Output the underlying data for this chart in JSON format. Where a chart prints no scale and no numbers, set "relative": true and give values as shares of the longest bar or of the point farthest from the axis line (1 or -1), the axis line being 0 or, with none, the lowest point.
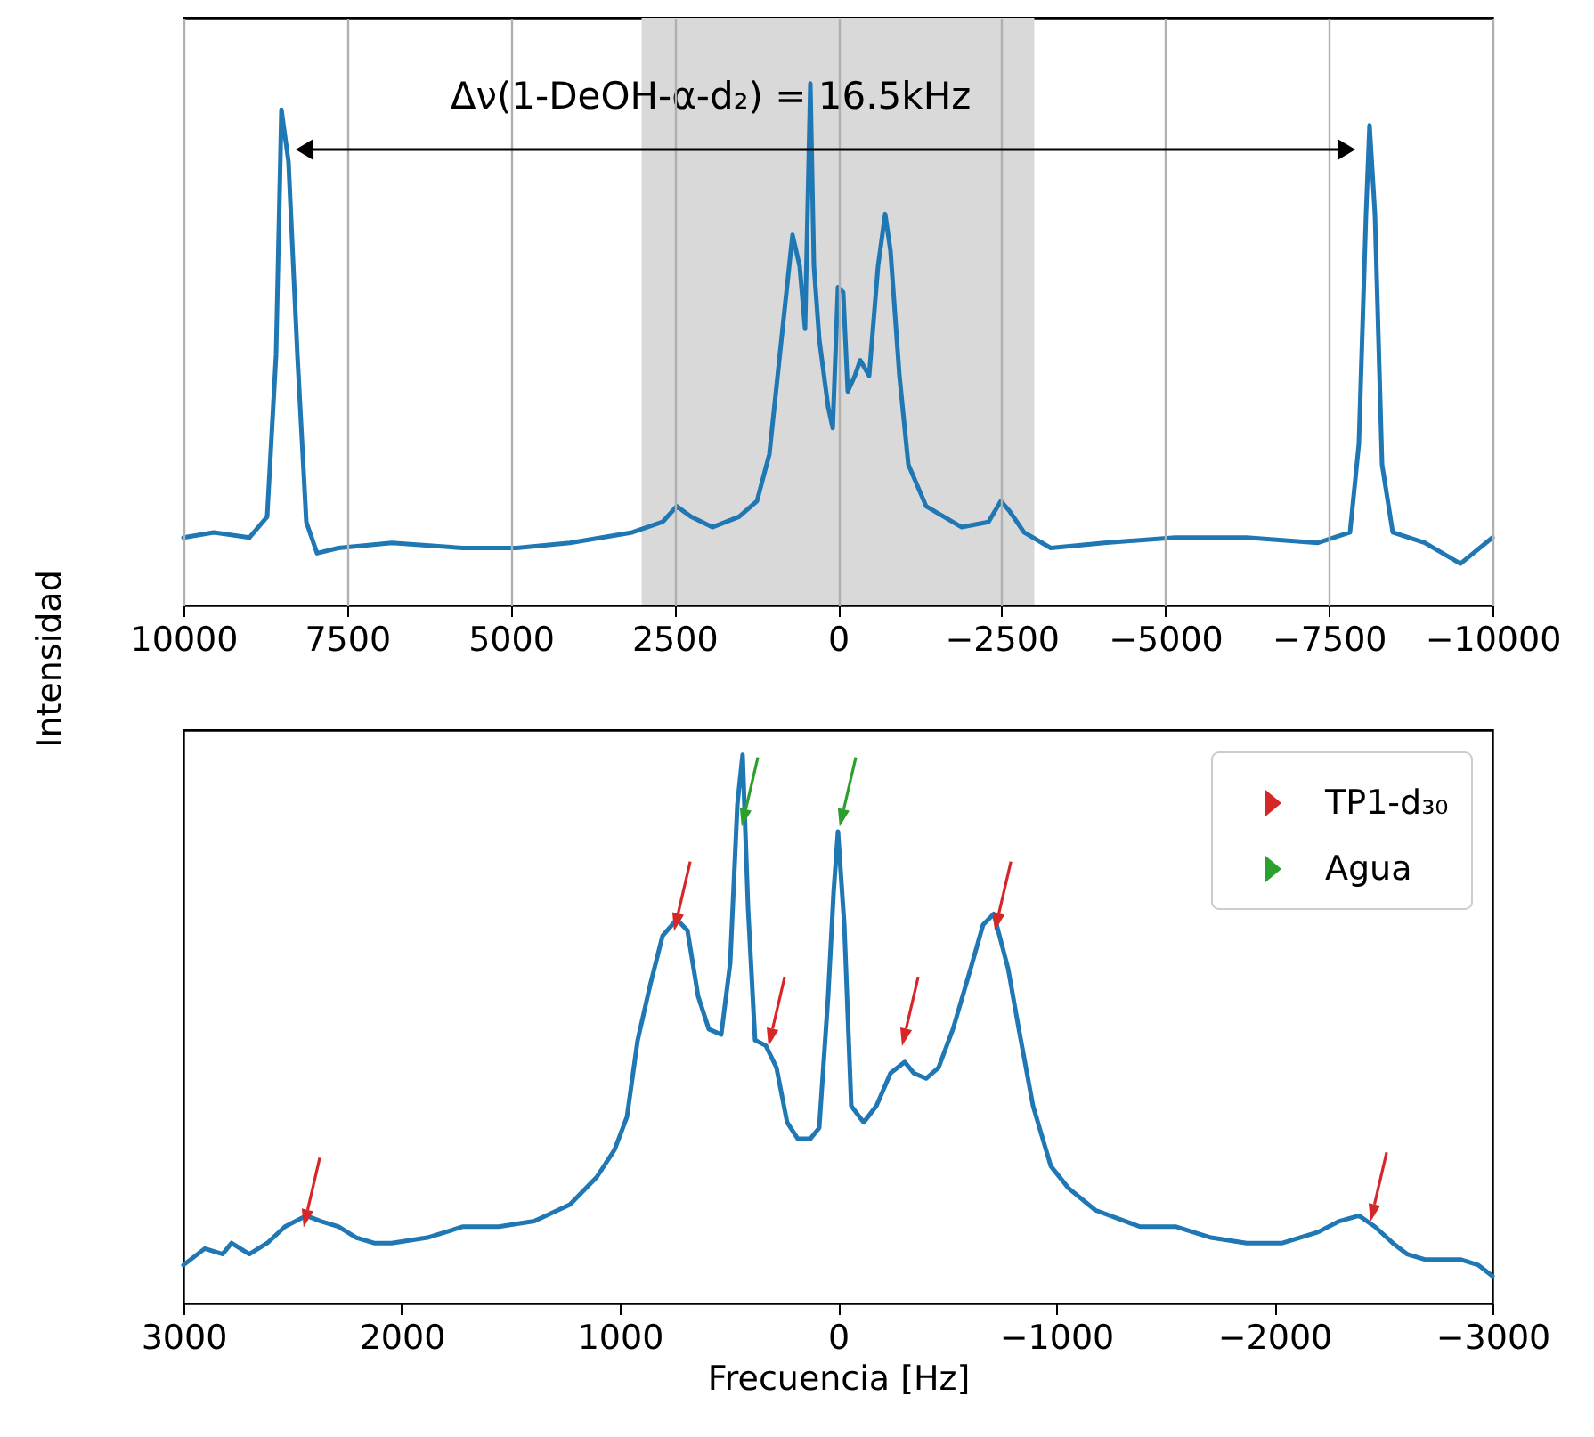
{
  "chart_data": [
    {
      "type": "line",
      "ylabel": "Intensidad",
      "relative": true,
      "grid": "x",
      "xlim": [
        10000,
        -10000
      ],
      "xticks": [
        10000,
        7500,
        5000,
        2500,
        0,
        -2500,
        -5000,
        -7500,
        -10000
      ],
      "bands": [
        {
          "axis": "x",
          "from": 3000,
          "to": -3000,
          "color": "#d9d9d9"
        }
      ],
      "annotations": [
        "Δν(1-DeOH-α-d₂) = 16.5kHz"
      ],
      "x": [
        10000,
        9537,
        8993,
        8721,
        8585,
        8503,
        8395,
        8259,
        8123,
        7959,
        7633,
        6816,
        5728,
        4912,
        4096,
        3143,
        2680,
        2463,
        2245,
        1919,
        1511,
        1238,
        1048,
        830,
        694,
        585,
        503,
        422,
        367,
        286,
        150,
        80,
        0,
        -80,
        -150,
        -258,
        -340,
        -476,
        -612,
        -721,
        -802,
        -939,
        -1075,
        -1347,
        -1891,
        -2299,
        -2489,
        -2625,
        -2843,
        -3251,
        -4068,
        -5156,
        -6245,
        -7333,
        -7823,
        -7959,
        -8068,
        -8122,
        -8204,
        -8313,
        -8476,
        -8966,
        -9510,
        -10000
      ],
      "series": [
        {
          "color": "#1f77b4",
          "values": [
            0.13,
            0.14,
            0.13,
            0.17,
            0.48,
            0.95,
            0.85,
            0.48,
            0.16,
            0.1,
            0.11,
            0.12,
            0.11,
            0.11,
            0.12,
            0.14,
            0.16,
            0.19,
            0.17,
            0.15,
            0.17,
            0.2,
            0.29,
            0.55,
            0.71,
            0.65,
            0.53,
            1,
            0.65,
            0.51,
            0.38,
            0.34,
            0.61,
            0.6,
            0.41,
            0.44,
            0.47,
            0.44,
            0.65,
            0.75,
            0.68,
            0.44,
            0.27,
            0.19,
            0.15,
            0.16,
            0.2,
            0.18,
            0.14,
            0.11,
            0.12,
            0.13,
            0.13,
            0.12,
            0.14,
            0.31,
            0.75,
            0.92,
            0.75,
            0.27,
            0.14,
            0.12,
            0.08,
            0.13
          ]
        }
      ]
    },
    {
      "type": "line",
      "xlabel": "Frecuencia [Hz]",
      "relative": true,
      "legend": "top right",
      "xlim": [
        3000,
        -3000
      ],
      "xticks": [
        3000,
        2000,
        1000,
        0,
        -1000,
        -2000,
        -3000
      ],
      "x": [
        3000,
        2902,
        2820,
        2780,
        2698,
        2616,
        2535,
        2437,
        2371,
        2290,
        2208,
        2126,
        2045,
        1882,
        1718,
        1555,
        1392,
        1229,
        1106,
        1024,
        967,
        918,
        861,
        804,
        739,
        690,
        641,
        592,
        535,
        494,
        461,
        437,
        412,
        380,
        331,
        282,
        233,
        184,
        127,
        86,
        45,
        20,
        0,
        -29,
        -61,
        -118,
        -176,
        -241,
        -306,
        -347,
        -404,
        -461,
        -527,
        -608,
        -665,
        -714,
        -780,
        -829,
        -894,
        -976,
        -1057,
        -1180,
        -1384,
        -1547,
        -1710,
        -1873,
        -2037,
        -2200,
        -2298,
        -2388,
        -2461,
        -2543,
        -2608,
        -2690,
        -2771,
        -2853,
        -2935,
        -3000
      ],
      "series": [
        {
          "color": "#1f77b4",
          "values": [
            0.07,
            0.1,
            0.09,
            0.11,
            0.09,
            0.11,
            0.14,
            0.16,
            0.15,
            0.14,
            0.12,
            0.11,
            0.11,
            0.12,
            0.14,
            0.14,
            0.15,
            0.18,
            0.23,
            0.28,
            0.34,
            0.48,
            0.58,
            0.67,
            0.7,
            0.68,
            0.56,
            0.5,
            0.49,
            0.62,
            0.91,
            1,
            0.72,
            0.48,
            0.47,
            0.43,
            0.33,
            0.3,
            0.3,
            0.32,
            0.56,
            0.75,
            0.86,
            0.69,
            0.36,
            0.33,
            0.36,
            0.42,
            0.44,
            0.42,
            0.41,
            0.43,
            0.5,
            0.61,
            0.69,
            0.71,
            0.61,
            0.5,
            0.36,
            0.25,
            0.21,
            0.17,
            0.14,
            0.14,
            0.12,
            0.11,
            0.11,
            0.13,
            0.15,
            0.16,
            0.14,
            0.11,
            0.09,
            0.08,
            0.08,
            0.08,
            0.07,
            0.05
          ]
        },
        {
          "type": "scatter",
          "name": "TP1-d₃₀",
          "color": "#d62728",
          "x": [
            2437,
            739,
            306,
            -306,
            -731,
            -2453
          ],
          "values": [
            0.16,
            0.7,
            0.49,
            0.49,
            0.7,
            0.17
          ]
        },
        {
          "type": "scatter",
          "name": "Agua",
          "color": "#2ca02c",
          "x": [
            429,
            -20
          ],
          "values": [
            0.89,
            0.89
          ]
        }
      ]
    }
  ]
}
